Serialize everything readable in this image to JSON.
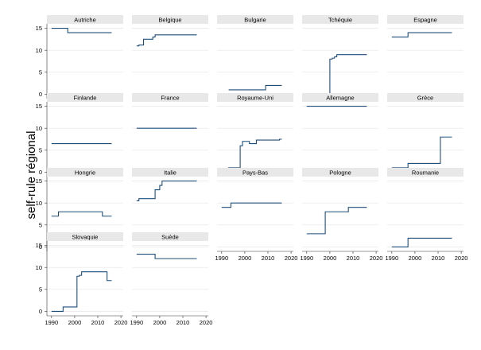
{
  "chart_data": {
    "type": "line",
    "ylabel": "self-rule régional",
    "xlim": [
      1988,
      2021
    ],
    "ylim": [
      -1,
      16
    ],
    "xticks": [
      1990,
      2000,
      2010,
      2020
    ],
    "yticks": [
      0,
      5,
      10,
      15
    ],
    "line_color": "#1f4e79",
    "grid": true,
    "panels": [
      {
        "title": "Autriche",
        "points": [
          [
            1990,
            15
          ],
          [
            1997,
            15
          ],
          [
            1997,
            14
          ],
          [
            2016,
            14
          ]
        ]
      },
      {
        "title": "Belgique",
        "points": [
          [
            1990,
            11
          ],
          [
            1991,
            11
          ],
          [
            1991,
            11.2
          ],
          [
            1993,
            11.2
          ],
          [
            1993,
            12.5
          ],
          [
            1997,
            12.5
          ],
          [
            1997,
            13
          ],
          [
            1998,
            13
          ],
          [
            1998,
            13.5
          ],
          [
            2016,
            13.5
          ]
        ]
      },
      {
        "title": "Bulgarie",
        "points": [
          [
            1993,
            1
          ],
          [
            2009,
            1
          ],
          [
            2009,
            2
          ],
          [
            2016,
            2
          ]
        ]
      },
      {
        "title": "Tchéquie",
        "points": [
          [
            1990,
            0
          ],
          [
            2000,
            0
          ],
          [
            2000,
            8
          ],
          [
            2001,
            8
          ],
          [
            2001,
            8.2
          ],
          [
            2002,
            8.2
          ],
          [
            2002,
            8.5
          ],
          [
            2003,
            8.5
          ],
          [
            2003,
            9
          ],
          [
            2016,
            9
          ]
        ]
      },
      {
        "title": "Espagne",
        "points": [
          [
            1990,
            13
          ],
          [
            1997,
            13
          ],
          [
            1997,
            14
          ],
          [
            2016,
            14
          ]
        ]
      },
      {
        "title": "Finlande",
        "points": [
          [
            1990,
            6.5
          ],
          [
            2016,
            6.5
          ]
        ]
      },
      {
        "title": "France",
        "points": [
          [
            1990,
            10
          ],
          [
            2016,
            10
          ]
        ]
      },
      {
        "title": "Royaume-Uni",
        "points": [
          [
            1990,
            0.5
          ],
          [
            1993,
            0.5
          ],
          [
            1993,
            1
          ],
          [
            1998,
            1
          ],
          [
            1998,
            6
          ],
          [
            1999,
            6
          ],
          [
            1999,
            7
          ],
          [
            2002,
            7
          ],
          [
            2002,
            6.5
          ],
          [
            2005,
            6.5
          ],
          [
            2005,
            7.3
          ],
          [
            2015,
            7.3
          ],
          [
            2015,
            7.5
          ],
          [
            2016,
            7.5
          ]
        ]
      },
      {
        "title": "Allemagne",
        "points": [
          [
            1990,
            15
          ],
          [
            2016,
            15
          ]
        ]
      },
      {
        "title": "Grèce",
        "points": [
          [
            1990,
            1
          ],
          [
            1997,
            1
          ],
          [
            1997,
            2
          ],
          [
            2011,
            2
          ],
          [
            2011,
            8
          ],
          [
            2016,
            8
          ]
        ]
      },
      {
        "title": "Hongrie",
        "points": [
          [
            1990,
            7
          ],
          [
            1993,
            7
          ],
          [
            1993,
            8
          ],
          [
            2012,
            8
          ],
          [
            2012,
            7
          ],
          [
            2016,
            7
          ]
        ]
      },
      {
        "title": "Italie",
        "points": [
          [
            1990,
            10.5
          ],
          [
            1991,
            10.5
          ],
          [
            1991,
            11
          ],
          [
            1998,
            11
          ],
          [
            1998,
            13
          ],
          [
            2000,
            13
          ],
          [
            2000,
            14
          ],
          [
            2001,
            14
          ],
          [
            2001,
            15
          ],
          [
            2016,
            15
          ]
        ]
      },
      {
        "title": "Pays-Bas",
        "points": [
          [
            1990,
            9
          ],
          [
            1994,
            9
          ],
          [
            1994,
            10
          ],
          [
            2016,
            10
          ]
        ]
      },
      {
        "title": "Pologne",
        "points": [
          [
            1990,
            3
          ],
          [
            1998,
            3
          ],
          [
            1998,
            8
          ],
          [
            2008,
            8
          ],
          [
            2008,
            9
          ],
          [
            2016,
            9
          ]
        ]
      },
      {
        "title": "Roumanie",
        "points": [
          [
            1990,
            0
          ],
          [
            1997,
            0
          ],
          [
            1997,
            2
          ],
          [
            2016,
            2
          ]
        ]
      },
      {
        "title": "Slovaquie",
        "points": [
          [
            1990,
            0
          ],
          [
            1995,
            0
          ],
          [
            1995,
            1
          ],
          [
            2001,
            1
          ],
          [
            2001,
            8
          ],
          [
            2002,
            8
          ],
          [
            2002,
            8.2
          ],
          [
            2003,
            8.2
          ],
          [
            2003,
            9
          ],
          [
            2014,
            9
          ],
          [
            2014,
            7
          ],
          [
            2016,
            7
          ]
        ]
      },
      {
        "title": "Suède",
        "points": [
          [
            1990,
            13
          ],
          [
            1998,
            13
          ],
          [
            1998,
            12
          ],
          [
            2016,
            12
          ]
        ]
      }
    ]
  }
}
